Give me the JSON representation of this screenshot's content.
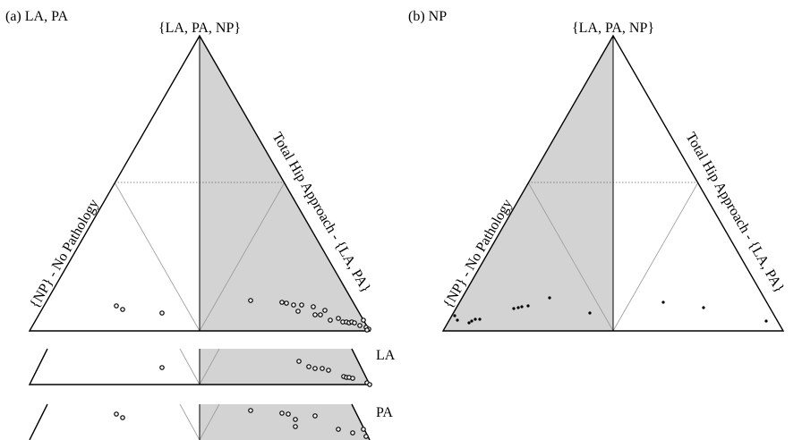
{
  "panel_a": {
    "label": "(a) LA, PA",
    "top_vertex": "{LA, PA, NP}",
    "left_edge": "{NP} - No Pathology",
    "right_edge": "Total Hip Approach - {LA, PA}",
    "strip1_label": "LA",
    "strip2_label": "PA"
  },
  "panel_b": {
    "label": "(b) NP",
    "top_vertex": "{LA, PA, NP}",
    "left_edge": "{NP} - No Pathology",
    "right_edge": "Total Hip Approach - {LA, PA}"
  }
}
